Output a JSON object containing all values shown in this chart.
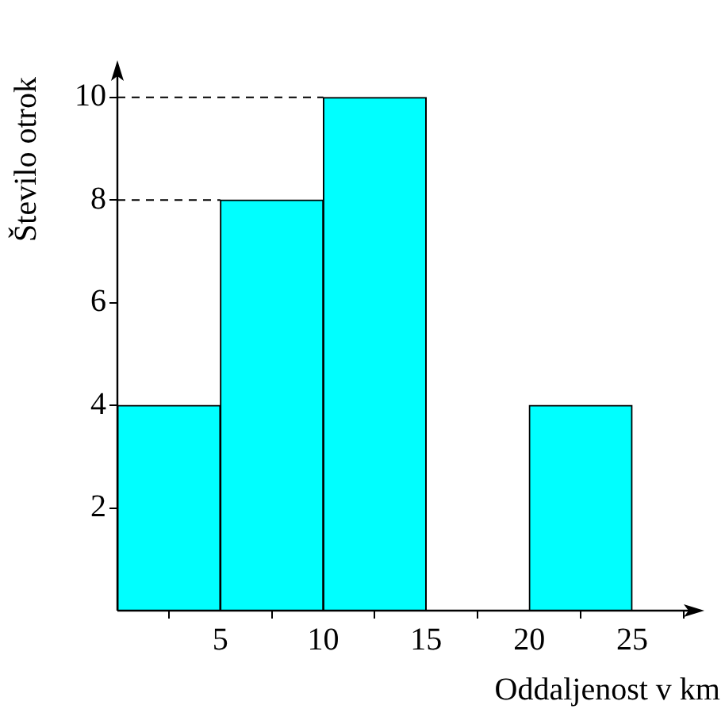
{
  "chart_data": {
    "type": "histogram",
    "xlabel": "Oddaljenost v km",
    "ylabel": "Število otrok",
    "bins": [
      0,
      5,
      10,
      15,
      20,
      25
    ],
    "values": [
      4,
      8,
      10,
      0,
      4
    ],
    "color": "#00ffff",
    "xlim": [
      0,
      28.2
    ],
    "ylim": [
      0,
      10.6
    ],
    "xticks": [
      5,
      10,
      15,
      20,
      25
    ],
    "yticks": [
      2,
      4,
      6,
      8,
      10
    ],
    "ref_lines": [
      {
        "axis": "y",
        "value": 8,
        "line_style": "dashed"
      },
      {
        "axis": "y",
        "value": 10,
        "line_style": "dashed"
      }
    ],
    "grid": false,
    "legend": false
  }
}
